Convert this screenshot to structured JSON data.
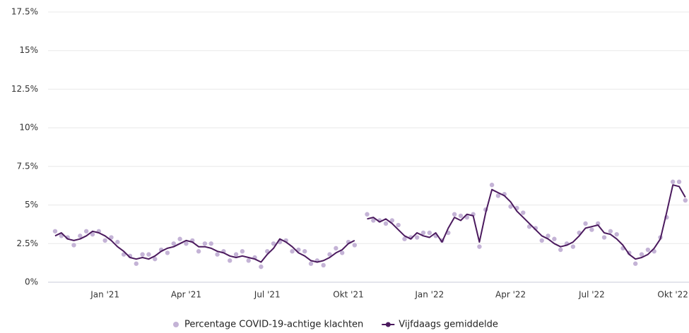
{
  "chart_data": {
    "type": "line",
    "categories": [
      null,
      null,
      null,
      null,
      null,
      null,
      null,
      null,
      "Jan '21",
      null,
      null,
      null,
      null,
      null,
      null,
      null,
      null,
      null,
      null,
      null,
      null,
      "Apr '21",
      null,
      null,
      null,
      null,
      null,
      null,
      null,
      null,
      null,
      null,
      null,
      null,
      "Jul '21",
      null,
      null,
      null,
      null,
      null,
      null,
      null,
      null,
      null,
      null,
      null,
      null,
      "Okt '21",
      null,
      null,
      null,
      null,
      null,
      null,
      null,
      null,
      null,
      null,
      null,
      null,
      "Jan '22",
      null,
      null,
      null,
      null,
      null,
      null,
      null,
      null,
      null,
      null,
      null,
      null,
      "Apr '22",
      null,
      null,
      null,
      null,
      null,
      null,
      null,
      null,
      null,
      null,
      null,
      null,
      "Jul '22",
      null,
      null,
      null,
      null,
      null,
      null,
      null,
      null,
      null,
      null,
      null,
      null,
      "Okt '22",
      null,
      null
    ],
    "series": [
      {
        "name": "Percentage COVID-19-achtige klachten",
        "type": "scatter",
        "color": "#c4b3d6",
        "values": [
          3.3,
          3.0,
          2.9,
          2.4,
          3.0,
          3.3,
          3.1,
          3.3,
          2.7,
          2.9,
          2.6,
          1.8,
          1.7,
          1.2,
          1.8,
          1.8,
          1.5,
          2.1,
          1.9,
          2.5,
          2.8,
          2.5,
          2.7,
          2.0,
          2.5,
          2.5,
          1.8,
          2.0,
          1.4,
          1.8,
          2.0,
          1.4,
          1.6,
          1.0,
          2.0,
          2.5,
          2.6,
          2.7,
          2.0,
          2.1,
          2.0,
          1.2,
          1.4,
          1.1,
          1.8,
          2.2,
          1.9,
          2.6,
          2.4,
          null,
          4.4,
          4.0,
          4.0,
          3.8,
          4.0,
          3.7,
          2.8,
          2.9,
          2.9,
          3.2,
          3.2,
          3.0,
          2.7,
          3.2,
          4.4,
          4.3,
          4.2,
          4.4,
          2.3,
          4.7,
          6.3,
          5.6,
          5.7,
          4.9,
          4.8,
          4.5,
          3.6,
          3.5,
          2.7,
          3.0,
          2.8,
          2.1,
          2.5,
          2.3,
          3.2,
          3.8,
          3.4,
          3.8,
          2.9,
          3.3,
          3.1,
          2.2,
          1.9,
          1.2,
          1.8,
          2.1,
          2.0,
          2.9,
          4.2,
          6.5,
          6.5,
          5.3
        ]
      },
      {
        "name": "Vijfdaags gemiddelde",
        "type": "line",
        "color": "#4b1a5e",
        "values": [
          3.0,
          3.2,
          2.8,
          2.7,
          2.8,
          3.0,
          3.3,
          3.2,
          3.0,
          2.7,
          2.3,
          2.0,
          1.6,
          1.5,
          1.6,
          1.5,
          1.7,
          2.0,
          2.2,
          2.3,
          2.5,
          2.7,
          2.6,
          2.3,
          2.3,
          2.2,
          2.0,
          1.9,
          1.7,
          1.6,
          1.7,
          1.6,
          1.5,
          1.3,
          1.8,
          2.2,
          2.8,
          2.6,
          2.3,
          1.9,
          1.7,
          1.4,
          1.3,
          1.4,
          1.6,
          1.9,
          2.1,
          2.5,
          2.7,
          null,
          4.1,
          4.2,
          3.9,
          4.1,
          3.8,
          3.4,
          3.0,
          2.8,
          3.2,
          3.0,
          2.9,
          3.2,
          2.6,
          3.5,
          4.2,
          4.0,
          4.4,
          4.3,
          2.6,
          4.5,
          6.0,
          5.8,
          5.6,
          5.2,
          4.6,
          4.2,
          3.8,
          3.4,
          3.0,
          2.8,
          2.5,
          2.3,
          2.4,
          2.6,
          3.0,
          3.5,
          3.6,
          3.7,
          3.2,
          3.1,
          2.8,
          2.4,
          1.8,
          1.5,
          1.6,
          1.8,
          2.2,
          2.8,
          4.5,
          6.3,
          6.2,
          5.5
        ]
      }
    ],
    "ylim": [
      0,
      17.5
    ],
    "yticks": [
      {
        "value": 0,
        "label": "0%"
      },
      {
        "value": 2.5,
        "label": "2.5%"
      },
      {
        "value": 5,
        "label": "5%"
      },
      {
        "value": 7.5,
        "label": "7.5%"
      },
      {
        "value": 10,
        "label": "10%"
      },
      {
        "value": 12.5,
        "label": "12.5%"
      },
      {
        "value": 15,
        "label": "15%"
      },
      {
        "value": 17.5,
        "label": "17.5%"
      }
    ],
    "grid": true
  }
}
